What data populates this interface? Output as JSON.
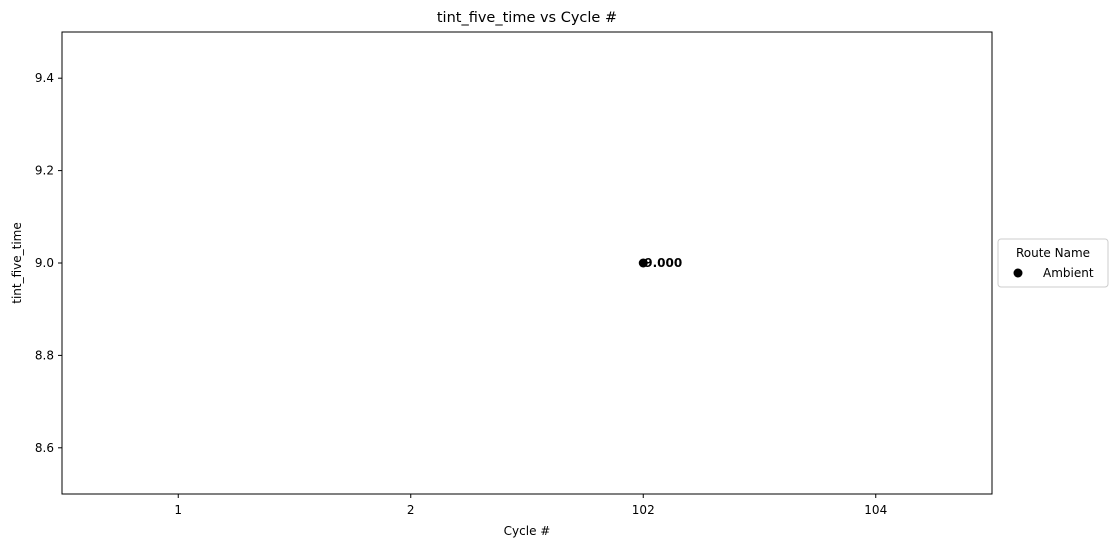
{
  "chart_data": {
    "type": "scatter",
    "title": "tint_five_time vs Cycle #",
    "xlabel": "Cycle #",
    "ylabel": "tint_five_time",
    "categories": [
      "1",
      "2",
      "102",
      "104"
    ],
    "xlim": [
      -0.5,
      3.5
    ],
    "ylim": [
      8.5,
      9.5
    ],
    "yticks": [
      "8.6",
      "8.8",
      "9.0",
      "9.2",
      "9.4"
    ],
    "ytick_values": [
      8.6,
      8.8,
      9.0,
      9.2,
      9.4
    ],
    "grid": false,
    "legend": {
      "title": "Route Name",
      "placement": "right-outside",
      "entries": [
        "Ambient"
      ]
    },
    "series": [
      {
        "name": "Ambient",
        "color": "#000000",
        "points": [
          {
            "x": "102",
            "y": 9.0,
            "label": "9.000"
          }
        ]
      }
    ]
  }
}
